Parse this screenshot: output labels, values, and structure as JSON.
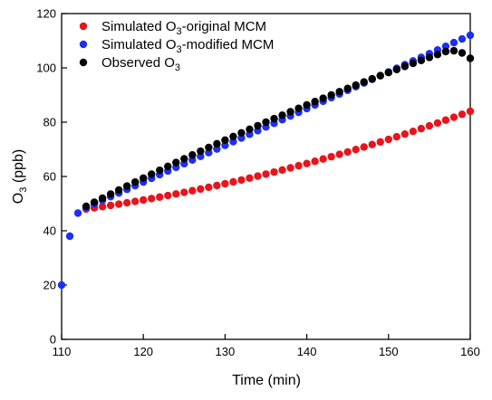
{
  "chart_data": {
    "type": "scatter",
    "title": "",
    "xlabel": "Time (min)",
    "ylabel_main": "O",
    "ylabel_sub": "3",
    "ylabel_unit": " (ppb)",
    "xlim": [
      110,
      160
    ],
    "ylim": [
      0,
      120
    ],
    "xticks": [
      110,
      120,
      130,
      140,
      150,
      160
    ],
    "yticks": [
      0,
      20,
      40,
      60,
      80,
      100,
      120
    ],
    "grid": false,
    "legend_position": "top-left",
    "series": [
      {
        "key": "original",
        "legend_pre": "Simulated O",
        "legend_sub": "3",
        "legend_post": "-original MCM",
        "color": "#e8141c",
        "x0": 113,
        "x1": 160,
        "y0": 48.0,
        "y1": 84.0,
        "curve": -4.0
      },
      {
        "key": "modified",
        "legend_pre": "Simulated O",
        "legend_sub": "3",
        "legend_post": "-modified MCM",
        "color": "#1f2ff0",
        "x": [
          110,
          111,
          112
        ],
        "y": [
          20,
          38,
          46.5
        ],
        "x0": 113,
        "x1": 160,
        "y0": 48.5,
        "y1": 112.0,
        "curve": 0
      },
      {
        "key": "observed",
        "legend_pre": "Observed O",
        "legend_sub": "3",
        "legend_post": "",
        "color": "#000000",
        "x0": 113,
        "x1": 157,
        "y0": 49.0,
        "y1": 106.0,
        "curve": 2.5,
        "x_tail": [
          158,
          159,
          160
        ],
        "y_tail": [
          106.3,
          105.5,
          103.5
        ]
      }
    ]
  }
}
